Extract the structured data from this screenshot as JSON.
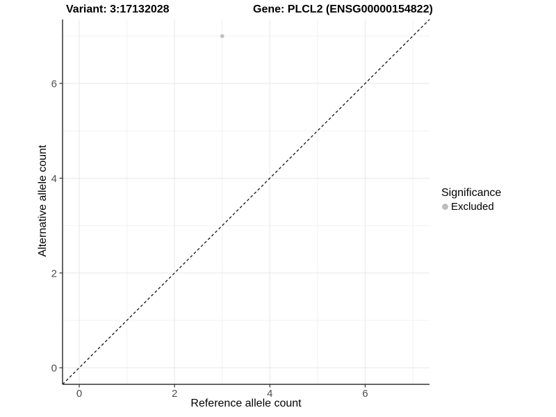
{
  "titles": {
    "variant": "Variant: 3:17132028",
    "gene": "Gene: PLCL2 (ENSG00000154822)"
  },
  "chart_data": {
    "type": "scatter",
    "title_left": "Variant: 3:17132028",
    "title_right": "Gene: PLCL2 (ENSG00000154822)",
    "xlabel": "Reference allele count",
    "ylabel": "Alternative allele count",
    "xlim": [
      -0.35,
      7.35
    ],
    "ylim": [
      -0.35,
      7.35
    ],
    "x_ticks": [
      0,
      2,
      4,
      6
    ],
    "y_ticks": [
      0,
      2,
      4,
      6
    ],
    "major_gridlines": [
      0,
      2,
      4,
      6
    ],
    "minor_gridlines": [
      1,
      3,
      5,
      7
    ],
    "grid": true,
    "series": [
      {
        "name": "Excluded",
        "color": "#bebebe",
        "points": [
          {
            "x": 3,
            "y": 7
          }
        ]
      }
    ],
    "reference_line": {
      "type": "identity",
      "style": "dashed",
      "from": [
        -0.35,
        -0.35
      ],
      "to": [
        7.35,
        7.35
      ],
      "color": "#000000"
    },
    "legend": {
      "title": "Significance",
      "position": "right",
      "entries": [
        {
          "label": "Excluded",
          "color": "#bebebe"
        }
      ]
    }
  },
  "colors": {
    "background": "#ffffff",
    "axis_line": "#333333",
    "tick_label": "#4d4d4d",
    "grid_major": "#e7e7e7",
    "grid_minor": "#f2f2f2",
    "point": "#bebebe"
  }
}
